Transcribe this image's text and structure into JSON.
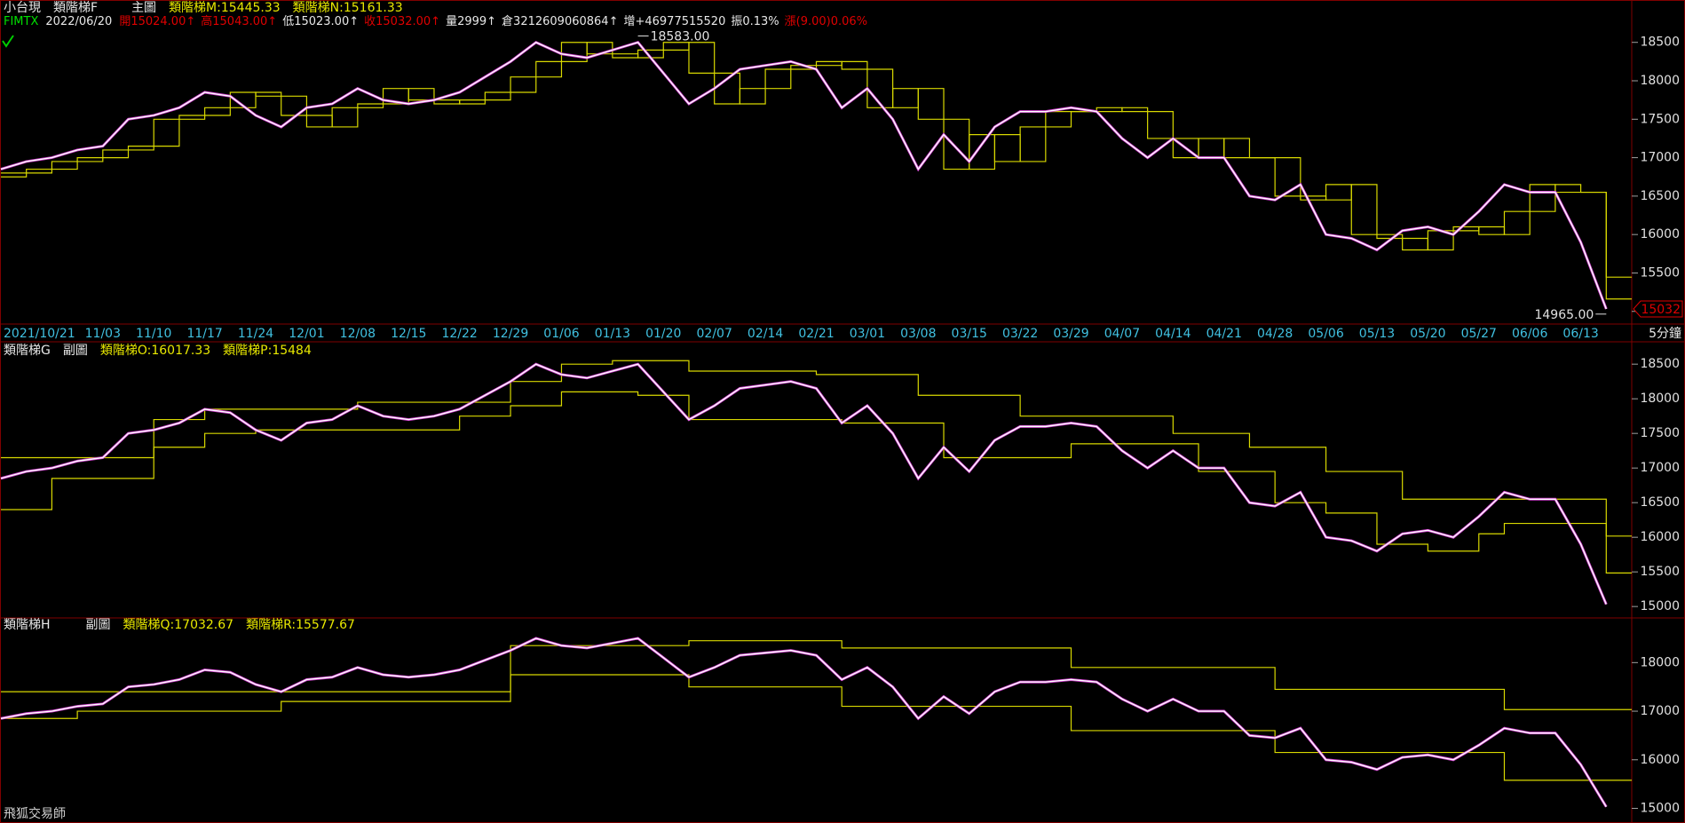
{
  "header": {
    "code": "FIMTX",
    "date": "2022/06/20",
    "quotes": [
      {
        "text": "開15024.00↑",
        "color": "#e00000"
      },
      {
        "text": "高15043.00↑",
        "color": "#e00000"
      },
      {
        "text": "低15023.00↑",
        "color": "#e8e8e8"
      },
      {
        "text": "收15032.00↑",
        "color": "#e00000"
      },
      {
        "text": "量2999↑",
        "color": "#e8e8e8"
      },
      {
        "text": "倉3212609060864↑",
        "color": "#e8e8e8"
      },
      {
        "text": "增+46977515520",
        "color": "#e8e8e8"
      },
      {
        "text": "振0.13%",
        "color": "#e8e8e8"
      },
      {
        "text": "漲(9.00)0.06%",
        "color": "#e00000"
      }
    ]
  },
  "footer": "飛狐交易師",
  "chart_data": [
    {
      "type": "line",
      "title": "小台現",
      "indicator": "類階梯F",
      "panel": "主圖",
      "period": "5分鐘",
      "categories": [
        "2021/10/21",
        null,
        null,
        null,
        "11/03",
        null,
        "11/10",
        null,
        "11/17",
        null,
        "11/24",
        null,
        "12/01",
        null,
        "12/08",
        null,
        "12/15",
        null,
        "12/22",
        null,
        "12/29",
        null,
        "01/06",
        null,
        "01/13",
        null,
        "01/20",
        null,
        "02/07",
        null,
        "02/14",
        null,
        "02/21",
        null,
        "03/01",
        null,
        "03/08",
        null,
        "03/15",
        null,
        "03/22",
        null,
        "03/29",
        null,
        "04/07",
        null,
        "04/14",
        null,
        "04/21",
        null,
        "04/28",
        null,
        "05/06",
        null,
        "05/13",
        null,
        "05/20",
        null,
        "05/27",
        null,
        "06/06",
        null,
        "06/13",
        null
      ],
      "series": [
        {
          "color": "#ffffff",
          "values": [
            16850,
            16950,
            17000,
            17100,
            17150,
            17500,
            17550,
            17650,
            17850,
            17800,
            17550,
            17400,
            17650,
            17700,
            17900,
            17750,
            17700,
            17750,
            17850,
            18050,
            18250,
            18500,
            18350,
            18300,
            18400,
            18500,
            18100,
            17700,
            17900,
            18150,
            18200,
            18250,
            18150,
            17650,
            17900,
            17500,
            16850,
            17300,
            16950,
            17400,
            17600,
            17600,
            17650,
            17600,
            17250,
            17000,
            17250,
            17000,
            17000,
            16500,
            16450,
            16650,
            16000,
            15950,
            15800,
            16050,
            16100,
            16000,
            16300,
            16650,
            16550,
            16550,
            15900,
            15032
          ]
        },
        {
          "name": "類階梯M:15445.33",
          "color": "#d8d800",
          "step": true,
          "values": [
            16800,
            16850,
            16950,
            17000,
            17100,
            17150,
            17500,
            17550,
            17650,
            17850,
            17800,
            17550,
            17400,
            17650,
            17700,
            17900,
            17750,
            17700,
            17750,
            17850,
            18050,
            18250,
            18500,
            18350,
            18300,
            18400,
            18500,
            18100,
            17700,
            17900,
            18150,
            18200,
            18250,
            18150,
            17650,
            17900,
            17500,
            16850,
            17300,
            16950,
            17400,
            17600,
            17600,
            17650,
            17600,
            17250,
            17000,
            17250,
            17000,
            17000,
            16500,
            16450,
            16650,
            16000,
            15950,
            15800,
            16050,
            16100,
            16000,
            16300,
            16650,
            16550,
            16550,
            15445.33
          ]
        },
        {
          "name": "類階梯N:15161.33",
          "color": "#d8d800",
          "step": true,
          "values": [
            16750,
            16800,
            16850,
            16950,
            17000,
            17100,
            17150,
            17500,
            17550,
            17650,
            17850,
            17800,
            17550,
            17400,
            17650,
            17700,
            17900,
            17750,
            17700,
            17750,
            17850,
            18050,
            18250,
            18500,
            18350,
            18300,
            18400,
            18500,
            18100,
            17700,
            17900,
            18150,
            18200,
            18250,
            18150,
            17650,
            17900,
            17500,
            16850,
            17300,
            16950,
            17400,
            17600,
            17600,
            17650,
            17600,
            17250,
            17000,
            17250,
            17000,
            17000,
            16500,
            16450,
            16650,
            16000,
            15950,
            15800,
            16050,
            16100,
            16000,
            16300,
            16650,
            16550,
            15161.33
          ]
        }
      ],
      "ylim": [
        14847,
        19028
      ],
      "yticks": [
        15000,
        15500,
        16000,
        16500,
        17000,
        17500,
        18000,
        18500
      ],
      "high": {
        "value": 18583,
        "label": "18583.00"
      },
      "low": {
        "value": 14965,
        "label": "14965.00"
      },
      "last": {
        "value": 15032,
        "label": "15032"
      }
    },
    {
      "type": "line",
      "title": "類階梯G",
      "panel": "副圖",
      "series": [
        {
          "name": "類階梯O:16017.33",
          "color": "#d8d800",
          "step": true,
          "values": [
            17150,
            17150,
            17150,
            17150,
            17150,
            17150,
            17700,
            17700,
            17850,
            17850,
            17850,
            17850,
            17850,
            17850,
            17950,
            17950,
            17950,
            17950,
            17950,
            17950,
            18250,
            18250,
            18500,
            18500,
            18550,
            18550,
            18550,
            18400,
            18400,
            18400,
            18400,
            18400,
            18350,
            18350,
            18350,
            18350,
            18050,
            18050,
            18050,
            18050,
            17750,
            17750,
            17750,
            17750,
            17750,
            17750,
            17500,
            17500,
            17500,
            17300,
            17300,
            17300,
            16950,
            16950,
            16950,
            16550,
            16550,
            16550,
            16550,
            16550,
            16550,
            16550,
            16550,
            16017.33
          ]
        },
        {
          "name": "類階梯P:15484",
          "color": "#d8d800",
          "step": true,
          "values": [
            16400,
            16400,
            16850,
            16850,
            16850,
            16850,
            17300,
            17300,
            17500,
            17500,
            17550,
            17550,
            17550,
            17550,
            17550,
            17550,
            17550,
            17550,
            17750,
            17750,
            17900,
            17900,
            18100,
            18100,
            18100,
            18050,
            18050,
            17700,
            17700,
            17700,
            17700,
            17700,
            17700,
            17650,
            17650,
            17650,
            17650,
            17150,
            17150,
            17150,
            17150,
            17150,
            17350,
            17350,
            17350,
            17350,
            17350,
            16950,
            16950,
            16950,
            16500,
            16500,
            16350,
            16350,
            15900,
            15900,
            15800,
            15800,
            16050,
            16200,
            16200,
            16200,
            16200,
            15484
          ]
        }
      ],
      "ylim": [
        14861,
        18810
      ],
      "yticks": [
        15000,
        15500,
        16000,
        16500,
        17000,
        17500,
        18000,
        18500
      ]
    },
    {
      "type": "line",
      "title": "類階梯H",
      "panel": "副圖",
      "series": [
        {
          "name": "類階梯Q:17032.67",
          "color": "#d8d800",
          "step": true,
          "values": [
            17400,
            17400,
            17400,
            17400,
            17400,
            17400,
            17400,
            17400,
            17400,
            17400,
            17400,
            17400,
            17400,
            17400,
            17400,
            17400,
            17400,
            17400,
            17400,
            17400,
            18350,
            18350,
            18350,
            18350,
            18350,
            18350,
            18350,
            18450,
            18450,
            18450,
            18450,
            18450,
            18450,
            18300,
            18300,
            18300,
            18300,
            18300,
            18300,
            18300,
            18300,
            18300,
            17900,
            17900,
            17900,
            17900,
            17900,
            17900,
            17900,
            17900,
            17450,
            17450,
            17450,
            17450,
            17450,
            17450,
            17450,
            17450,
            17450,
            17032.67,
            17032.67,
            17032.67,
            17032.67,
            17032.67
          ]
        },
        {
          "name": "類階梯R:15577.67",
          "color": "#d8d800",
          "step": true,
          "values": [
            16850,
            16850,
            16850,
            17000,
            17000,
            17000,
            17000,
            17000,
            17000,
            17000,
            17000,
            17200,
            17200,
            17200,
            17200,
            17200,
            17200,
            17200,
            17200,
            17200,
            17750,
            17750,
            17750,
            17750,
            17750,
            17750,
            17750,
            17500,
            17500,
            17500,
            17500,
            17500,
            17500,
            17100,
            17100,
            17100,
            17100,
            17100,
            17100,
            17100,
            17100,
            17100,
            16600,
            16600,
            16600,
            16600,
            16600,
            16600,
            16600,
            16600,
            16150,
            16150,
            16150,
            16150,
            16150,
            16150,
            16150,
            16150,
            16150,
            15577.67,
            15577.67,
            15577.67,
            15577.67,
            15577.67
          ]
        }
      ],
      "ylim": [
        14735,
        18883
      ],
      "yticks": [
        15000,
        16000,
        17000,
        18000
      ]
    }
  ]
}
